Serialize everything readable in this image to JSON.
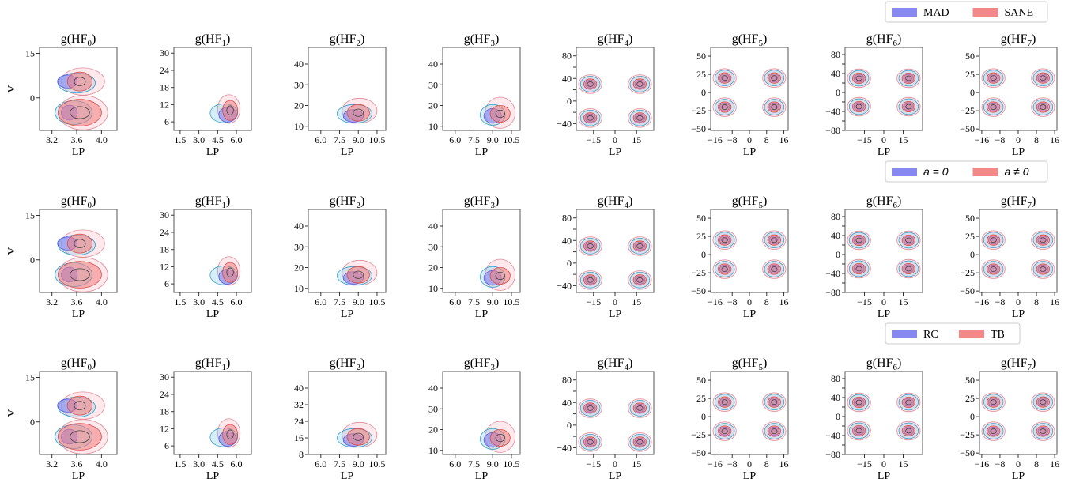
{
  "colors": {
    "blue_fill": "#7b7bf2",
    "red_fill": "#f27b7b",
    "cyan_fill": "#87ceeb",
    "pink_fill": "#ffc0cb",
    "blue_stroke": "#5a5ae0",
    "red_stroke": "#d94a4a",
    "cyan_stroke": "#3aa0c8",
    "pink_stroke": "#e08a96",
    "axis": "#555555"
  },
  "chart_data": {
    "type": "kde-contour-grid",
    "rows": [
      {
        "legend": [
          "MAD",
          "SANE"
        ],
        "legend_style": "serif",
        "front": "red"
      },
      {
        "legend": [
          "a = 0",
          "a ≠ 0"
        ],
        "legend_style": "math",
        "front": "red"
      },
      {
        "legend": [
          "RC",
          "TB"
        ],
        "legend_style": "serif",
        "front": "red"
      }
    ],
    "ylabel": "V",
    "xlabel": "LP",
    "panels": [
      {
        "title_base": "g(HF",
        "title_sub": "0",
        "title_end": ")",
        "xlim": [
          3.0,
          4.25
        ],
        "xticks": [
          3.2,
          3.6,
          4.0
        ],
        "xtick_labels": [
          "3.2",
          "3.6",
          "4.0"
        ],
        "ylim": [
          -11,
          17
        ],
        "yticks": [
          0,
          15
        ],
        "ytick_labels": [
          "0",
          "15"
        ],
        "yticks_row3": [
          0,
          15
        ],
        "ytick_labels_row3": [
          "0",
          "15"
        ]
      },
      {
        "title_base": "g(HF",
        "title_sub": "1",
        "title_end": ")",
        "xlim": [
          1.0,
          7.2
        ],
        "xticks": [
          1.5,
          3.0,
          4.5,
          6.0
        ],
        "xtick_labels": [
          "1.5",
          "3.0",
          "4.5",
          "6.0"
        ],
        "ylim": [
          3,
          32
        ],
        "yticks": [
          6,
          12,
          18,
          24,
          30
        ],
        "ytick_labels": [
          "6",
          "12",
          "18",
          "24",
          "30"
        ],
        "yticks_row3": [
          6,
          12,
          18,
          24,
          30
        ],
        "ytick_labels_row3": [
          "6",
          "12",
          "18",
          "24",
          "30"
        ]
      },
      {
        "title_base": "g(HF",
        "title_sub": "2",
        "title_end": ")",
        "xlim": [
          5.0,
          11.2
        ],
        "xticks": [
          6.0,
          7.5,
          9.0,
          10.5
        ],
        "xtick_labels": [
          "6.0",
          "7.5",
          "9.0",
          "10.5"
        ],
        "ylim": [
          8,
          48
        ],
        "yticks": [
          10,
          20,
          30,
          40
        ],
        "ytick_labels": [
          "10",
          "20",
          "30",
          "40"
        ],
        "yticks_row3": [
          8,
          16,
          24,
          32,
          40
        ],
        "ytick_labels_row3": [
          "8",
          "16",
          "24",
          "32",
          "40"
        ]
      },
      {
        "title_base": "g(HF",
        "title_sub": "3",
        "title_end": ")",
        "xlim": [
          5.0,
          11.2
        ],
        "xticks": [
          6.0,
          7.5,
          9.0,
          10.5
        ],
        "xtick_labels": [
          "6.0",
          "7.5",
          "9.0",
          "10.5"
        ],
        "ylim": [
          8,
          48
        ],
        "yticks": [
          10,
          20,
          30,
          40
        ],
        "ytick_labels": [
          "10",
          "20",
          "30",
          "40"
        ],
        "yticks_row3": [
          10,
          20,
          30,
          40
        ],
        "ytick_labels_row3": [
          "10",
          "20",
          "30",
          "40"
        ]
      },
      {
        "title_base": "g(HF",
        "title_sub": "4",
        "title_end": ")",
        "xlim": [
          -27,
          27
        ],
        "xticks": [
          -15,
          0,
          15
        ],
        "xtick_labels": [
          "−15",
          "0",
          "15"
        ],
        "ylim": [
          -52,
          95
        ],
        "yticks": [
          -40,
          -20,
          0,
          20,
          40,
          60,
          80
        ],
        "ytick_labels": [
          "−40",
          "",
          "0",
          "",
          "40",
          "",
          "80"
        ],
        "yticks_row3": [
          -40,
          -20,
          0,
          20,
          40,
          60,
          80
        ],
        "ytick_labels_row3": [
          "−40",
          "",
          "0",
          "",
          "40",
          "",
          "80"
        ],
        "blobs": "sym4"
      },
      {
        "title_base": "g(HF",
        "title_sub": "5",
        "title_end": ")",
        "xlim": [
          -18,
          18
        ],
        "xticks": [
          -16,
          -8,
          0,
          8,
          16
        ],
        "xtick_labels": [
          "−16",
          "−8",
          "0",
          "8",
          "16"
        ],
        "ylim": [
          -52,
          62
        ],
        "yticks": [
          -50,
          -25,
          0,
          25,
          50
        ],
        "ytick_labels": [
          "−50",
          "−25",
          "0",
          "25",
          "50"
        ],
        "yticks_row3": [
          -50,
          -25,
          0,
          25,
          50
        ],
        "ytick_labels_row3": [
          "−50",
          "−25",
          "0",
          "25",
          "50"
        ],
        "blobs": "sym4"
      },
      {
        "title_base": "g(HF",
        "title_sub": "6",
        "title_end": ")",
        "xlim": [
          -30,
          30
        ],
        "xticks": [
          -15,
          0,
          15
        ],
        "xtick_labels": [
          "−15",
          "0",
          "15"
        ],
        "ylim": [
          -80,
          95
        ],
        "yticks": [
          -80,
          -60,
          -40,
          -20,
          0,
          20,
          40,
          60,
          80
        ],
        "ytick_labels": [
          "−80",
          "",
          "−40",
          "",
          "0",
          "",
          "40",
          "",
          "80"
        ],
        "yticks_row3": [
          -80,
          -60,
          -40,
          -20,
          0,
          20,
          40,
          60,
          80
        ],
        "ytick_labels_row3": [
          "−80",
          "",
          "−40",
          "",
          "0",
          "",
          "40",
          "",
          "80"
        ],
        "blobs": "sym4"
      },
      {
        "title_base": "g(HF",
        "title_sub": "7",
        "title_end": ")",
        "xlim": [
          -17,
          17
        ],
        "xticks": [
          -16,
          -8,
          0,
          8,
          16
        ],
        "xtick_labels": [
          "−16",
          "−8",
          "0",
          "8",
          "16"
        ],
        "ylim": [
          -52,
          62
        ],
        "yticks": [
          -50,
          -25,
          0,
          25,
          50
        ],
        "ytick_labels": [
          "−50",
          "−25",
          "0",
          "25",
          "50"
        ],
        "yticks_row3": [
          -50,
          -25,
          0,
          25,
          50
        ],
        "ytick_labels_row3": [
          "−50",
          "−25",
          "0",
          "25",
          "50"
        ],
        "blobs": "sym4"
      }
    ],
    "blob_data": {
      "p0": {
        "blue": [
          [
            3.45,
            5.5,
            0.16,
            2.2
          ],
          [
            3.48,
            -5.0,
            0.13,
            2.5
          ]
        ],
        "red": [
          [
            3.65,
            5.5,
            0.2,
            3.2
          ],
          [
            3.65,
            -5.0,
            0.35,
            4.5
          ]
        ],
        "cyan": [
          [
            3.6,
            5.0,
            0.3,
            3.4
          ],
          [
            3.55,
            -5.0,
            0.3,
            4.0
          ]
        ],
        "pink": [
          [
            3.7,
            5.5,
            0.35,
            4.6
          ],
          [
            3.7,
            -5.0,
            0.4,
            5.8
          ]
        ]
      },
      "p1": {
        "blue": [
          [
            5.3,
            8.5,
            0.7,
            2.6
          ]
        ],
        "red": [
          [
            5.5,
            10.0,
            0.6,
            3.5
          ]
        ],
        "cyan": [
          [
            5.0,
            9.0,
            1.1,
            3.3
          ]
        ],
        "pink": [
          [
            5.4,
            10.5,
            0.9,
            5.0
          ]
        ]
      },
      "p2": {
        "blue": [
          [
            8.6,
            15.0,
            0.8,
            3.0
          ]
        ],
        "red": [
          [
            9.0,
            16.5,
            0.9,
            4.0
          ]
        ],
        "cyan": [
          [
            8.7,
            16.0,
            1.4,
            4.5
          ]
        ],
        "pink": [
          [
            9.1,
            17.5,
            1.4,
            6.0
          ]
        ]
      },
      "p3": {
        "blue": [
          [
            9.0,
            15.0,
            0.7,
            3.5
          ]
        ],
        "red": [
          [
            9.6,
            16.0,
            0.8,
            4.0
          ]
        ],
        "cyan": [
          [
            9.0,
            15.5,
            1.0,
            5.0
          ]
        ],
        "pink": [
          [
            9.6,
            16.5,
            1.2,
            7.5
          ]
        ]
      },
      "sym4": true
    }
  }
}
